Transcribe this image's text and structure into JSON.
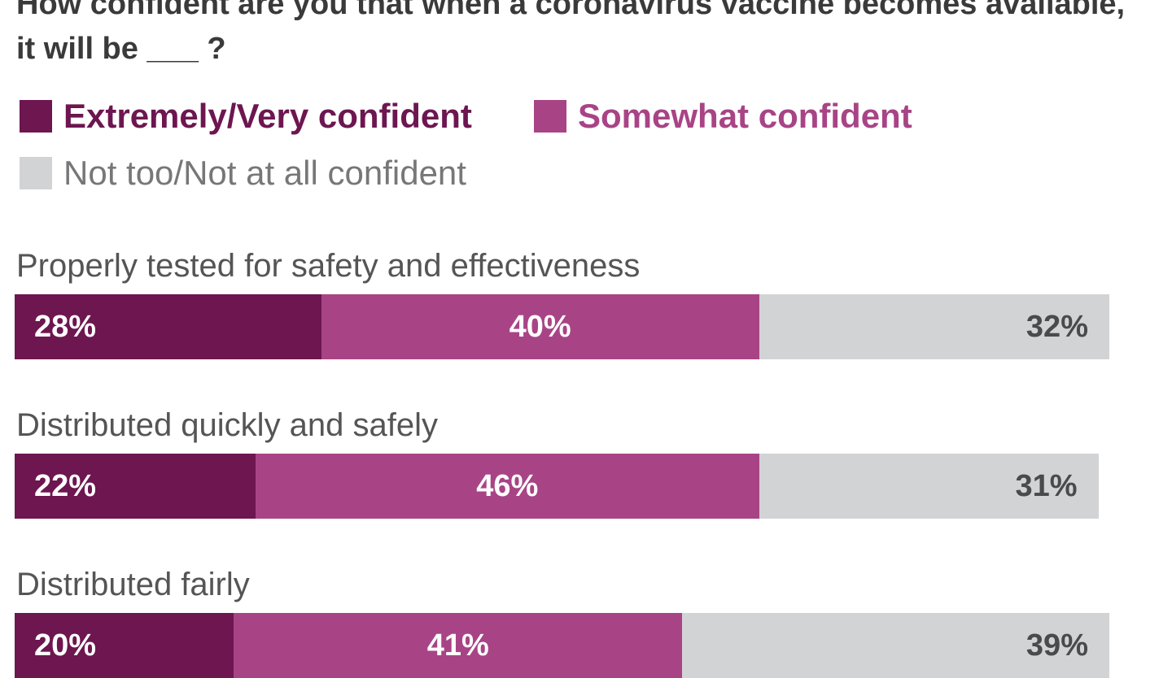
{
  "colors": {
    "very": "#6d1650",
    "somewhat": "#a84486",
    "not": "#d2d3d5",
    "text_dark": "#3a3a3a",
    "text_gray": "#777777"
  },
  "chart_data": {
    "type": "bar",
    "orientation": "horizontal",
    "stacked": true,
    "title": "How confident are you that when a coronavirus vaccine becomes available, it will be ___ ?",
    "legend_position": "top",
    "categories": [
      "Properly tested for safety and effectiveness",
      "Distributed quickly and safely",
      "Distributed fairly"
    ],
    "series": [
      {
        "name": "Extremely/Very confident",
        "values": [
          28,
          22,
          20
        ],
        "labels": [
          "28%",
          "22%",
          "20%"
        ]
      },
      {
        "name": "Somewhat confident",
        "values": [
          40,
          46,
          41
        ],
        "labels": [
          "40%",
          "46%",
          "41%"
        ]
      },
      {
        "name": "Not too/Not at all confident",
        "values": [
          32,
          31,
          39
        ],
        "labels": [
          "32%",
          "31%",
          "39%"
        ]
      }
    ]
  }
}
